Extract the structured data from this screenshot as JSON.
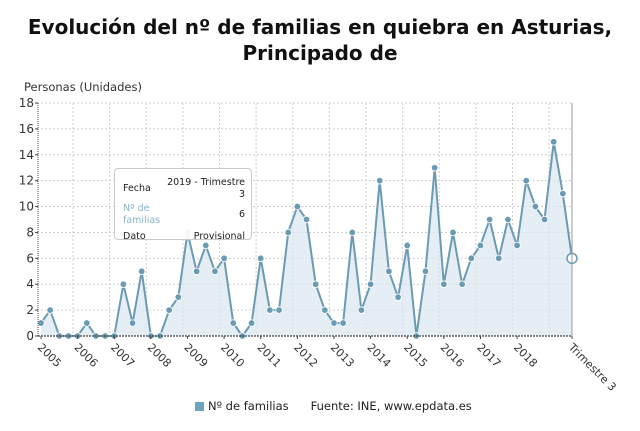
{
  "title": "Evolución del nº de familias en quiebra en Asturias, Principado de",
  "tooltip": {
    "fecha_label": "Fecha",
    "fecha_value": "2019 - Trimestre 3",
    "series_label": "Nº de familias",
    "series_value": "6",
    "dato_label": "Dato",
    "dato_value": "Provisional"
  },
  "legend": {
    "series_label": "Nº de familias",
    "source": "Fuente: INE, www.epdata.es"
  },
  "colors": {
    "line": "#6b9bb3",
    "fill": "#dbe8f0",
    "marker": "#6b9bb3",
    "grid": "#cfcfcf"
  },
  "chart_data": {
    "type": "area",
    "title": "Evolución del nº de familias en quiebra en Asturias, Principado de",
    "xlabel": "",
    "ylabel": "Personas (Unidades)",
    "ylim": [
      0,
      18
    ],
    "yticks": [
      0,
      2,
      4,
      6,
      8,
      10,
      12,
      14,
      16,
      18
    ],
    "xtick_labels": [
      "2005",
      "2006",
      "2007",
      "2008",
      "2009",
      "2010",
      "2011",
      "2012",
      "2013",
      "2014",
      "2015",
      "2016",
      "2017",
      "2018",
      "Trimestre 3"
    ],
    "grid": true,
    "legend_position": "bottom",
    "categories": [
      "2005-T1",
      "2005-T2",
      "2005-T3",
      "2005-T4",
      "2006-T1",
      "2006-T2",
      "2006-T3",
      "2006-T4",
      "2007-T1",
      "2007-T2",
      "2007-T3",
      "2007-T4",
      "2008-T1",
      "2008-T2",
      "2008-T3",
      "2008-T4",
      "2009-T1",
      "2009-T2",
      "2009-T3",
      "2009-T4",
      "2010-T1",
      "2010-T2",
      "2010-T3",
      "2010-T4",
      "2011-T1",
      "2011-T2",
      "2011-T3",
      "2011-T4",
      "2012-T1",
      "2012-T2",
      "2012-T3",
      "2012-T4",
      "2013-T1",
      "2013-T2",
      "2013-T3",
      "2013-T4",
      "2014-T1",
      "2014-T2",
      "2014-T3",
      "2014-T4",
      "2015-T1",
      "2015-T2",
      "2015-T3",
      "2015-T4",
      "2016-T1",
      "2016-T2",
      "2016-T3",
      "2016-T4",
      "2017-T1",
      "2017-T2",
      "2017-T3",
      "2017-T4",
      "2018-T1",
      "2018-T2",
      "2018-T3",
      "2018-T4",
      "2019-T1",
      "2019-T2",
      "2019-T3"
    ],
    "series": [
      {
        "name": "Nº de familias",
        "values": [
          1,
          2,
          0,
          0,
          0,
          1,
          0,
          0,
          0,
          4,
          1,
          5,
          0,
          0,
          2,
          3,
          8,
          5,
          7,
          5,
          6,
          1,
          0,
          1,
          6,
          2,
          2,
          8,
          10,
          9,
          4,
          2,
          1,
          1,
          8,
          2,
          4,
          12,
          5,
          3,
          7,
          0,
          5,
          13,
          4,
          8,
          4,
          6,
          7,
          9,
          6,
          9,
          7,
          12,
          10,
          9,
          15,
          11,
          6
        ]
      }
    ],
    "highlighted_point": {
      "category": "2019-T3",
      "value": 6,
      "status": "Provisional"
    }
  }
}
